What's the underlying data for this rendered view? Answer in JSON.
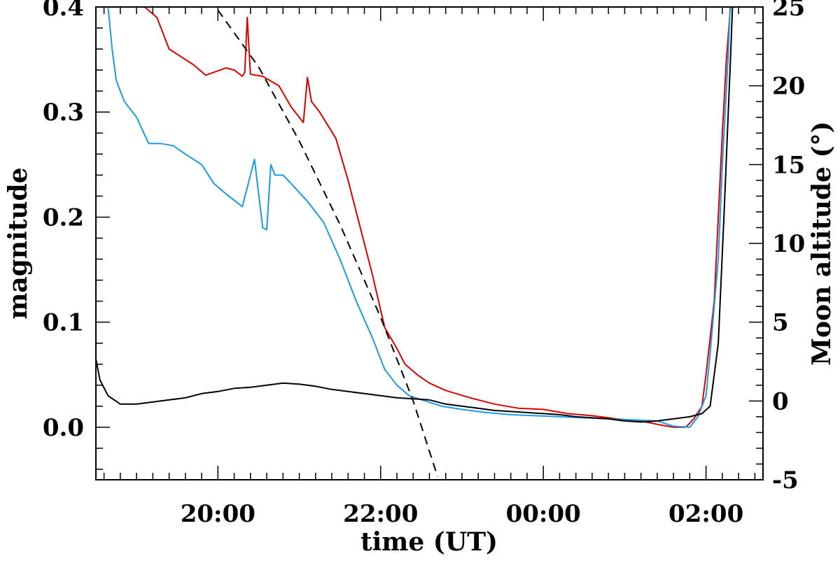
{
  "chart_data": {
    "type": "line",
    "xlabel": "time (UT)",
    "ylabel": "magnitude",
    "y2label": "Moon altitude (°)",
    "xlim_hours": [
      18.5,
      26.7
    ],
    "ylim": [
      -0.05,
      0.4
    ],
    "y2lim": [
      -5,
      25
    ],
    "x_ticks": [
      {
        "value": 20,
        "label": "20:00"
      },
      {
        "value": 22,
        "label": "22:00"
      },
      {
        "value": 24,
        "label": "00:00"
      },
      {
        "value": 26,
        "label": "02:00"
      }
    ],
    "y_ticks": [
      {
        "value": 0.0,
        "label": "0.0"
      },
      {
        "value": 0.1,
        "label": "0.1"
      },
      {
        "value": 0.2,
        "label": "0.2"
      },
      {
        "value": 0.3,
        "label": "0.3"
      },
      {
        "value": 0.4,
        "label": "0.4"
      }
    ],
    "y2_ticks": [
      {
        "value": -5,
        "label": "-5"
      },
      {
        "value": 0,
        "label": "0"
      },
      {
        "value": 5,
        "label": "5"
      },
      {
        "value": 10,
        "label": "10"
      },
      {
        "value": 15,
        "label": "15"
      },
      {
        "value": 20,
        "label": "20"
      },
      {
        "value": 25,
        "label": "25"
      }
    ],
    "grid": false,
    "series": [
      {
        "color": "#dd0000",
        "axis": "left",
        "style": "solid",
        "x": [
          19.1,
          19.25,
          19.3,
          19.4,
          19.7,
          19.85,
          20.1,
          20.2,
          20.3,
          20.33,
          20.36,
          20.4,
          20.55,
          20.75,
          20.9,
          21.05,
          21.1,
          21.15,
          21.25,
          21.45,
          21.6,
          21.75,
          21.9,
          22.05,
          22.2,
          22.3,
          22.45,
          22.6,
          22.8,
          23.1,
          23.4,
          23.7,
          24.0,
          24.3,
          24.6,
          24.9,
          25.2,
          25.45,
          25.6,
          25.75,
          25.85,
          25.95,
          26.0,
          26.1,
          26.15,
          26.2,
          26.25,
          26.3,
          26.33
        ],
        "y": [
          0.4,
          0.39,
          0.38,
          0.36,
          0.345,
          0.335,
          0.342,
          0.34,
          0.334,
          0.338,
          0.39,
          0.336,
          0.334,
          0.325,
          0.305,
          0.29,
          0.333,
          0.31,
          0.3,
          0.275,
          0.235,
          0.19,
          0.145,
          0.095,
          0.075,
          0.06,
          0.05,
          0.042,
          0.035,
          0.028,
          0.022,
          0.018,
          0.017,
          0.013,
          0.011,
          0.008,
          0.006,
          0.002,
          0.0,
          0.0,
          0.008,
          0.02,
          0.05,
          0.12,
          0.2,
          0.28,
          0.35,
          0.4,
          0.41
        ]
      },
      {
        "color": "#1a9be8",
        "axis": "left",
        "style": "solid",
        "x": [
          18.65,
          18.7,
          18.75,
          18.85,
          19.0,
          19.15,
          19.3,
          19.45,
          19.6,
          19.8,
          19.95,
          20.1,
          20.3,
          20.45,
          20.55,
          20.6,
          20.65,
          20.7,
          20.75,
          20.8,
          20.9,
          21.1,
          21.3,
          21.5,
          21.7,
          21.9,
          22.05,
          22.2,
          22.35,
          22.55,
          22.75,
          23.0,
          23.3,
          23.6,
          23.9,
          24.2,
          24.5,
          24.8,
          25.1,
          25.4,
          25.6,
          25.8,
          25.9,
          26.0,
          26.05,
          26.15,
          26.2,
          26.27,
          26.3
        ],
        "y": [
          0.4,
          0.36,
          0.33,
          0.31,
          0.295,
          0.27,
          0.27,
          0.268,
          0.26,
          0.25,
          0.232,
          0.222,
          0.21,
          0.255,
          0.19,
          0.188,
          0.25,
          0.24,
          0.24,
          0.24,
          0.232,
          0.215,
          0.195,
          0.16,
          0.12,
          0.085,
          0.055,
          0.04,
          0.03,
          0.025,
          0.02,
          0.017,
          0.014,
          0.012,
          0.011,
          0.01,
          0.009,
          0.008,
          0.007,
          0.006,
          0.001,
          0.0,
          0.01,
          0.03,
          0.07,
          0.16,
          0.25,
          0.35,
          0.41
        ]
      },
      {
        "color": "#000000",
        "axis": "left",
        "style": "solid",
        "x": [
          18.5,
          18.55,
          18.65,
          18.8,
          19.0,
          19.2,
          19.4,
          19.6,
          19.8,
          20.0,
          20.2,
          20.4,
          20.6,
          20.8,
          21.0,
          21.2,
          21.4,
          21.6,
          21.8,
          22.0,
          22.2,
          22.4,
          22.6,
          22.8,
          23.0,
          23.2,
          23.4,
          23.6,
          23.8,
          24.0,
          24.2,
          24.4,
          24.6,
          24.8,
          25.0,
          25.2,
          25.4,
          25.6,
          25.8,
          25.95,
          26.05,
          26.15,
          26.22,
          26.3,
          26.33
        ],
        "y": [
          0.065,
          0.045,
          0.03,
          0.022,
          0.022,
          0.024,
          0.026,
          0.028,
          0.032,
          0.034,
          0.037,
          0.038,
          0.04,
          0.042,
          0.041,
          0.039,
          0.036,
          0.034,
          0.032,
          0.03,
          0.028,
          0.027,
          0.026,
          0.022,
          0.02,
          0.018,
          0.016,
          0.015,
          0.014,
          0.013,
          0.012,
          0.01,
          0.009,
          0.008,
          0.006,
          0.005,
          0.006,
          0.008,
          0.01,
          0.013,
          0.02,
          0.08,
          0.2,
          0.35,
          0.41
        ]
      },
      {
        "color": "#000000",
        "axis": "right",
        "style": "dashed",
        "x": [
          19.6,
          20.0,
          20.5,
          21.0,
          21.5,
          22.0,
          22.4,
          22.7
        ],
        "y": [
          26.5,
          24.8,
          21.2,
          16.5,
          11.2,
          5.3,
          0.0,
          -4.8
        ]
      }
    ]
  }
}
